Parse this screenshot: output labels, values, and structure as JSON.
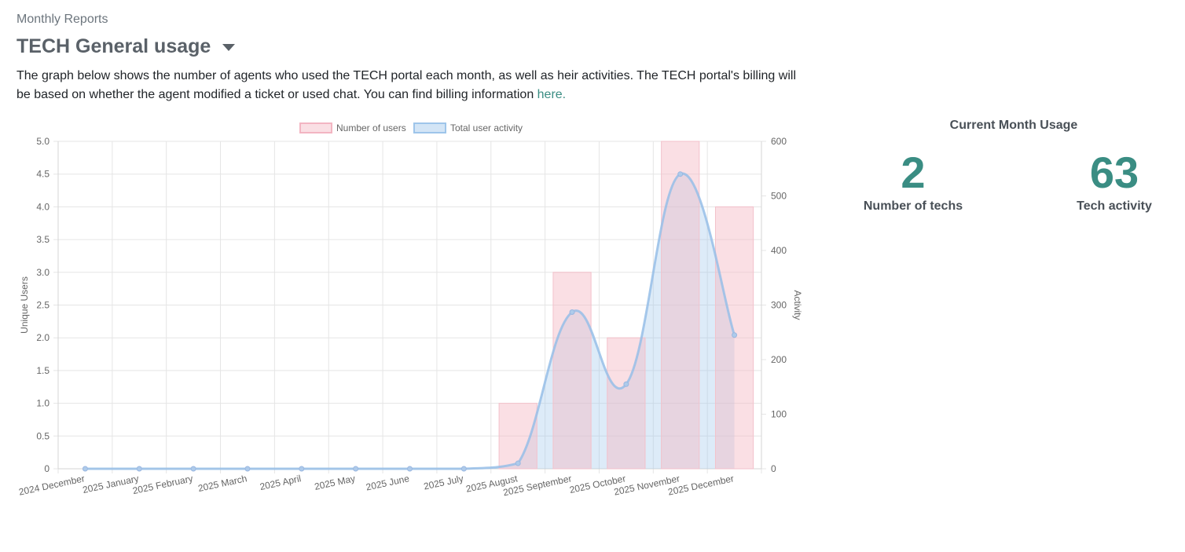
{
  "breadcrumb": "Monthly Reports",
  "page_title": "TECH General usage",
  "description": {
    "text": "The graph below shows the number of agents who used the TECH portal each month, as well as heir activities. The TECH portal's billing will be based on whether the agent modified a ticket or used chat. You can find billing information ",
    "link_text": "here."
  },
  "current_month": {
    "title": "Current Month Usage",
    "techs_value": "2",
    "techs_label": "Number of techs",
    "activity_value": "63",
    "activity_label": "Tech activity"
  },
  "chart_data": {
    "type": "bar",
    "categories": [
      "2024 December",
      "2025 January",
      "2025 February",
      "2025 March",
      "2025 April",
      "2025 May",
      "2025 June",
      "2025 July",
      "2025 August",
      "2025 September",
      "2025 October",
      "2025 November",
      "2025 December"
    ],
    "series": [
      {
        "name": "Number of users",
        "type": "bar",
        "axis": "left",
        "values": [
          0,
          0,
          0,
          0,
          0,
          0,
          0,
          0,
          1,
          3,
          2,
          5,
          4
        ],
        "color": "#f5b8c4"
      },
      {
        "name": "Total user activity",
        "type": "line",
        "axis": "right",
        "values": [
          0,
          0,
          0,
          0,
          0,
          0,
          0,
          0,
          10,
          287,
          155,
          540,
          245
        ],
        "color": "#9ec5ea"
      }
    ],
    "ylabel": "Unique Users",
    "y2label": "Activity",
    "ylim": [
      0,
      5
    ],
    "y2lim": [
      0,
      600
    ],
    "yticks": [
      "0",
      "0.5",
      "1.0",
      "1.5",
      "2.0",
      "2.5",
      "3.0",
      "3.5",
      "4.0",
      "4.5",
      "5.0"
    ],
    "y2ticks": [
      "0",
      "100",
      "200",
      "300",
      "400",
      "500",
      "600"
    ],
    "grid": true,
    "legend": "top"
  }
}
